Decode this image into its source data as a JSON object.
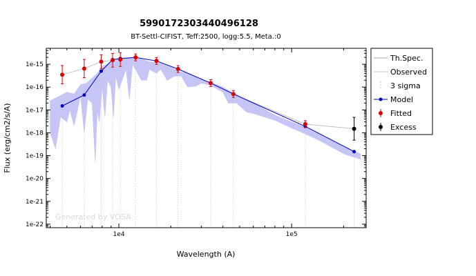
{
  "chart_data": {
    "type": "scatter",
    "title": "5990172303440496128",
    "subtitle": "BT-Settl-CIFIST, Teff:2500, logg:5.5, Meta.:0",
    "xlabel": "Wavelength (A)",
    "ylabel": "Flux (erg/cm2/s/A)",
    "x_scale": "log",
    "y_scale": "log",
    "xlim": [
      3800,
      270000
    ],
    "ylim": [
      7e-23,
      5e-15
    ],
    "x_ticks": [
      {
        "value": 10000,
        "label": "1e4"
      },
      {
        "value": 100000,
        "label": "1e5"
      }
    ],
    "y_ticks": [
      {
        "value": 1e-15,
        "label": "1e-15"
      },
      {
        "value": 1e-16,
        "label": "1e-16"
      },
      {
        "value": 1e-17,
        "label": "1e-17"
      },
      {
        "value": 1e-18,
        "label": "1e-18"
      },
      {
        "value": 1e-19,
        "label": "1e-19"
      },
      {
        "value": 1e-20,
        "label": "1e-20"
      },
      {
        "value": 1e-21,
        "label": "1e-21"
      },
      {
        "value": 1e-22,
        "label": "1e-22"
      }
    ],
    "legend_position": "right, outside plot",
    "watermark": "Generated by VOSA",
    "series": [
      {
        "name": "Th.Spec.",
        "kind": "spectrum",
        "color": "#bbbbf5",
        "envelope": [
          [
            4000,
            2.5e-17
          ],
          [
            4500,
            4e-17
          ],
          [
            5000,
            6e-17
          ],
          [
            5500,
            5e-17
          ],
          [
            6000,
            1.3e-16
          ],
          [
            6500,
            1.5e-16
          ],
          [
            7000,
            2.5e-16
          ],
          [
            7500,
            4e-16
          ],
          [
            8000,
            8e-16
          ],
          [
            8500,
            1e-15
          ],
          [
            9000,
            1.2e-15
          ],
          [
            9500,
            1.5e-15
          ],
          [
            10000,
            1.7e-15
          ],
          [
            11000,
            1.9e-15
          ],
          [
            12000,
            2e-15
          ],
          [
            13000,
            1.9e-15
          ],
          [
            15000,
            1.3e-15
          ],
          [
            17000,
            1.2e-15
          ],
          [
            20000,
            8e-16
          ],
          [
            22000,
            5e-16
          ],
          [
            25000,
            4e-16
          ],
          [
            30000,
            2.1e-16
          ],
          [
            35000,
            1.5e-16
          ],
          [
            40000,
            1e-16
          ],
          [
            45000,
            6e-17
          ],
          [
            50000,
            4e-17
          ],
          [
            60000,
            2e-17
          ],
          [
            80000,
            6e-18
          ],
          [
            100000,
            3e-18
          ],
          [
            120000,
            1.8e-18
          ],
          [
            150000,
            8e-19
          ],
          [
            200000,
            2.5e-19
          ],
          [
            250000,
            1.2e-19
          ]
        ],
        "lower": [
          [
            4000,
            1e-18
          ],
          [
            4300,
            2e-19
          ],
          [
            4600,
            5e-18
          ],
          [
            5000,
            3e-18
          ],
          [
            5200,
            1e-17
          ],
          [
            5500,
            2e-18
          ],
          [
            6000,
            4e-17
          ],
          [
            6300,
            1e-18
          ],
          [
            6600,
            3e-17
          ],
          [
            7000,
            2e-17
          ],
          [
            7300,
            5e-20
          ],
          [
            7500,
            1e-17
          ],
          [
            7700,
            3e-18
          ],
          [
            8000,
            1e-16
          ],
          [
            8300,
            5e-18
          ],
          [
            8600,
            2e-16
          ],
          [
            9000,
            1e-16
          ],
          [
            9300,
            5e-18
          ],
          [
            9600,
            3e-16
          ],
          [
            10000,
            8e-17
          ],
          [
            11000,
            6e-16
          ],
          [
            11500,
            3e-17
          ],
          [
            12000,
            1e-15
          ],
          [
            13500,
            2e-16
          ],
          [
            14500,
            2e-16
          ],
          [
            15000,
            6e-16
          ],
          [
            16500,
            4e-16
          ],
          [
            17500,
            6e-16
          ],
          [
            19000,
            2e-16
          ],
          [
            21000,
            3e-16
          ],
          [
            23000,
            3e-16
          ],
          [
            25000,
            1e-16
          ],
          [
            28000,
            1.1e-16
          ],
          [
            30000,
            1.5e-16
          ],
          [
            34000,
            1.2e-16
          ],
          [
            40000,
            6e-17
          ],
          [
            43000,
            2e-17
          ],
          [
            48000,
            2e-17
          ],
          [
            55000,
            8e-18
          ],
          [
            60000,
            7e-18
          ],
          [
            80000,
            3.5e-18
          ],
          [
            100000,
            1.6e-18
          ],
          [
            120000,
            9e-19
          ],
          [
            150000,
            4e-19
          ],
          [
            200000,
            1.2e-19
          ],
          [
            250000,
            7e-20
          ]
        ]
      },
      {
        "name": "Observed",
        "kind": "line",
        "color": "#c0c0c0"
      },
      {
        "name": "3 sigma",
        "kind": "upper-limit",
        "color": "#c8c8c8"
      },
      {
        "name": "Model",
        "kind": "line+points",
        "color": "#0000bb",
        "points": [
          [
            4700,
            1.5e-17
          ],
          [
            6300,
            4.5e-17
          ],
          [
            7900,
            5e-16
          ],
          [
            9200,
            1.6e-15
          ],
          [
            10200,
            1.8e-15
          ],
          [
            12500,
            2e-15
          ],
          [
            16500,
            1.4e-15
          ],
          [
            22000,
            6.2e-16
          ],
          [
            34000,
            1.5e-16
          ],
          [
            46000,
            5e-17
          ],
          [
            120000,
            1.9e-18
          ],
          [
            230000,
            1.5e-19
          ]
        ]
      },
      {
        "name": "Fitted",
        "kind": "points+errorbars",
        "color": "#dd0000",
        "points": [
          [
            4700,
            3.5e-16,
            0.4
          ],
          [
            6300,
            6.5e-16,
            0.4
          ],
          [
            7900,
            1.3e-15,
            0.3
          ],
          [
            9200,
            1.5e-15,
            0.3
          ],
          [
            10200,
            1.6e-15,
            0.3
          ],
          [
            12500,
            2e-15,
            0.15
          ],
          [
            16500,
            1.4e-15,
            0.15
          ],
          [
            22000,
            6.2e-16,
            0.15
          ],
          [
            34000,
            1.5e-16,
            0.15
          ],
          [
            46000,
            5e-17,
            0.15
          ],
          [
            120000,
            2.4e-18,
            0.15
          ]
        ]
      },
      {
        "name": "Excess",
        "kind": "points+errorbars",
        "color": "#000000",
        "points": [
          [
            230000,
            1.5e-18,
            0.5
          ]
        ]
      }
    ]
  }
}
